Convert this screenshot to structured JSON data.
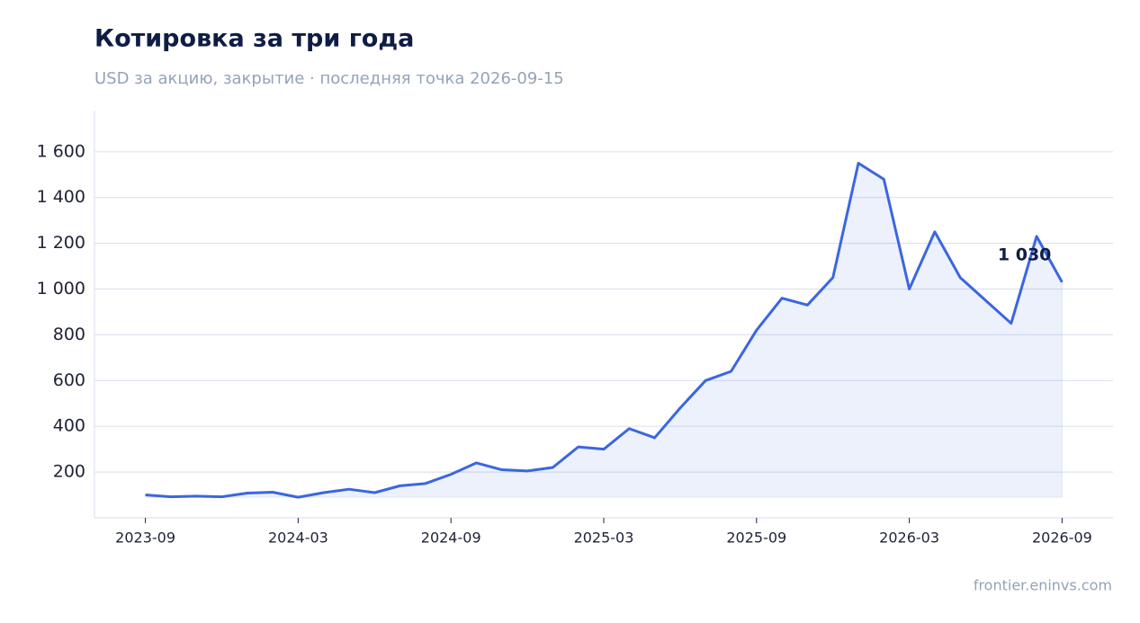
{
  "chart_data": {
    "type": "line",
    "title": "Котировка за три года",
    "subtitle": "USD за акцию, закрытие · последняя точка 2026-09-15",
    "source": "frontier.eninvs.com",
    "x": [
      "2023-09",
      "2023-10",
      "2023-11",
      "2023-12",
      "2024-01",
      "2024-02",
      "2024-03",
      "2024-04",
      "2024-05",
      "2024-06",
      "2024-07",
      "2024-08",
      "2024-09",
      "2024-10",
      "2024-11",
      "2024-12",
      "2025-01",
      "2025-02",
      "2025-03",
      "2025-04",
      "2025-05",
      "2025-06",
      "2025-07",
      "2025-08",
      "2025-09",
      "2025-10",
      "2025-11",
      "2025-12",
      "2026-01",
      "2026-02",
      "2026-03",
      "2026-04",
      "2026-05",
      "2026-06",
      "2026-07",
      "2026-08",
      "2026-09"
    ],
    "series": [
      {
        "name": "USD за акцию",
        "color": "#3b66e0",
        "values": [
          100,
          92,
          95,
          92,
          108,
          112,
          90,
          110,
          125,
          110,
          140,
          150,
          190,
          240,
          210,
          205,
          220,
          310,
          300,
          390,
          350,
          480,
          600,
          640,
          820,
          960,
          930,
          1050,
          1550,
          1480,
          1000,
          1250,
          1050,
          950,
          850,
          1230,
          1030
        ]
      }
    ],
    "last_label": {
      "value": 1030,
      "label": "1 030"
    },
    "xlim": [
      "2023-07",
      "2026-11"
    ],
    "xticks": [
      "2023-09",
      "2024-03",
      "2024-09",
      "2025-03",
      "2025-09",
      "2026-03",
      "2026-09"
    ],
    "ylim": [
      0,
      1780
    ],
    "yticks": [
      {
        "value": 200,
        "label": "200"
      },
      {
        "value": 400,
        "label": "400"
      },
      {
        "value": 600,
        "label": "600"
      },
      {
        "value": 800,
        "label": "800"
      },
      {
        "value": 1000,
        "label": "1 000"
      },
      {
        "value": 1200,
        "label": "1 200"
      },
      {
        "value": 1400,
        "label": "1 400"
      },
      {
        "value": 1600,
        "label": "1 600"
      }
    ],
    "grid": true
  }
}
